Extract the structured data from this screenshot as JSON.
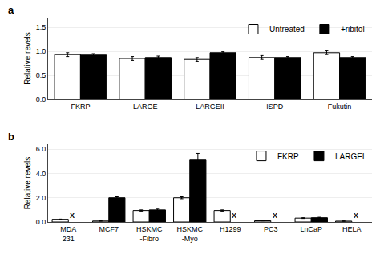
{
  "chart_data": [
    {
      "type": "bar",
      "title": "a",
      "categories": [
        "FKRP",
        "LARGE",
        "LARGEII",
        "ISPD",
        "Fukutin"
      ],
      "series": [
        {
          "name": "Untreated",
          "color": "#ffffff",
          "values": [
            0.93,
            0.85,
            0.83,
            0.87,
            0.97
          ],
          "errors": [
            0.04,
            0.04,
            0.04,
            0.04,
            0.04
          ]
        },
        {
          "name": "+ribitol",
          "color": "#000000",
          "values": [
            0.92,
            0.87,
            0.97,
            0.87,
            0.87
          ],
          "errors": [
            0.03,
            0.03,
            0.02,
            0.02,
            0.02
          ]
        }
      ],
      "ylabel": "Relative revels",
      "ylim": [
        0,
        1.7
      ],
      "yticks": [
        {
          "value": 0.0,
          "label": "0.0"
        },
        0.5,
        {
          "value": 1.0,
          "label": "1.0"
        },
        1.5
      ],
      "grid": true,
      "legend": "upper right"
    },
    {
      "type": "bar",
      "title": "b",
      "categories": [
        "MDA\n231",
        "MCF7",
        "HSKMC\n-Fibro",
        "HSKMC\n-Myo",
        "H1299",
        "PC3",
        "LnCaP",
        "HELA"
      ],
      "series": [
        {
          "name": "FKRP",
          "color": "#ffffff",
          "values": [
            0.22,
            0.08,
            0.95,
            2.0,
            0.95,
            0.1,
            0.32,
            0.07
          ],
          "errors": [
            0.02,
            0.01,
            0.05,
            0.08,
            0.05,
            0.01,
            0.03,
            0.01
          ]
        },
        {
          "name": "LARGEI",
          "color": "#000000",
          "values": [
            null,
            2.0,
            1.0,
            5.1,
            null,
            null,
            0.35,
            null
          ],
          "errors": [
            null,
            0.08,
            0.07,
            0.55,
            null,
            null,
            0.04,
            null
          ]
        }
      ],
      "annotations": [
        {
          "text": "X",
          "x": 0,
          "y": 0.06
        },
        {
          "text": "X",
          "x": 4,
          "y": 0.06
        },
        {
          "text": "X",
          "x": 5,
          "y": 0.06
        },
        {
          "text": "X",
          "x": 7,
          "y": 0.06
        }
      ],
      "ylabel": "Relative revels",
      "ylim": [
        0,
        6.4
      ],
      "yticks": [
        {
          "value": 0.0,
          "label": "0.0"
        },
        {
          "value": 2.0,
          "label": "2.0"
        },
        {
          "value": 4.0,
          "label": "4.0"
        },
        {
          "value": 6.0,
          "label": "6.0"
        }
      ],
      "grid": true,
      "legend": "upper right"
    }
  ]
}
